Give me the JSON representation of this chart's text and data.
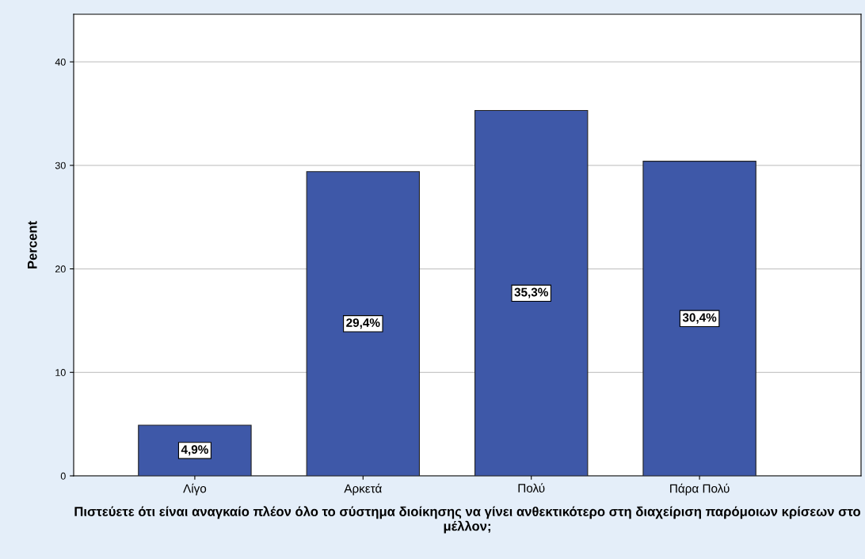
{
  "chart_data": {
    "type": "bar",
    "ylabel": "Percent",
    "xlabel": "Πιστεύετε ότι είναι αναγκαίο πλέον όλο το σύστημα διοίκησης να γίνει ανθεκτικότερο στη διαχείριση παρόμοιων κρίσεων στο μέλλον;",
    "categories": [
      "Λίγο",
      "Αρκετά",
      "Πολύ",
      "Πάρα Πολύ"
    ],
    "values": [
      4.9,
      29.4,
      35.3,
      30.4
    ],
    "value_labels": [
      "4,9%",
      "29,4%",
      "35,3%",
      "30,4%"
    ],
    "color": "#3e58a8",
    "ylim": [
      0,
      44.6
    ],
    "yticks": [
      0,
      10,
      20,
      30,
      40
    ],
    "grid": "y",
    "legend": false
  }
}
